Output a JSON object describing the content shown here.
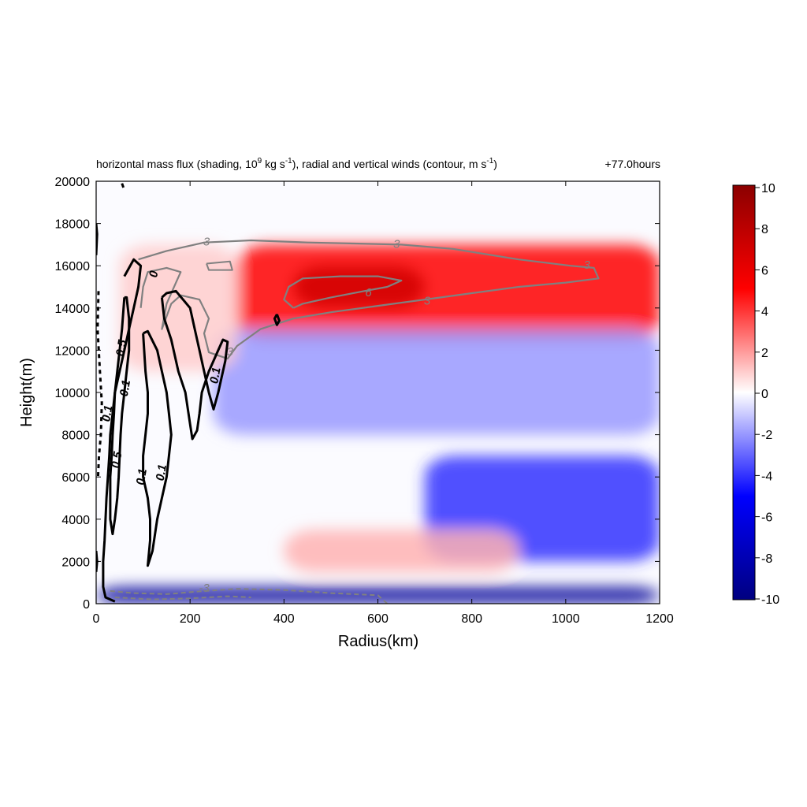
{
  "title": {
    "left_prefix": "horizontal mass flux (shading, 10",
    "left_sup1": "9",
    "left_mid": " kg s",
    "left_sup2": "-1",
    "left_mid2": "), radial and vertical winds (contour, m s",
    "left_sup3": "-1",
    "left_suffix": ")",
    "right": "+77.0hours"
  },
  "colors": {
    "positive_max": "#8b0000",
    "positive_mid": "#ff0000",
    "zero": "#ffffff",
    "negative_mid": "#0000ff",
    "negative_max": "#000080",
    "contour_radial": "#808080",
    "contour_vertical": "#000000"
  },
  "chart_data": {
    "type": "heatmap",
    "xlabel": "Radius(km)",
    "ylabel": "Height(m)",
    "xlim": [
      0,
      1200
    ],
    "ylim": [
      0,
      20000
    ],
    "xticks": [
      "0",
      "200",
      "400",
      "600",
      "800",
      "1000",
      "1200"
    ],
    "yticks": [
      "0",
      "2000",
      "4000",
      "6000",
      "8000",
      "10000",
      "12000",
      "14000",
      "16000",
      "18000",
      "20000"
    ],
    "colorbar": {
      "range": [
        -10,
        10
      ],
      "ticks": [
        "10",
        "8",
        "6",
        "4",
        "2",
        "0",
        "-2",
        "-4",
        "-6",
        "-8",
        "-10"
      ]
    },
    "shading_regions": [
      {
        "name": "upper outflow",
        "value": 5,
        "x": [
          300,
          1200
        ],
        "y": [
          12500,
          17000
        ]
      },
      {
        "name": "upper outflow core",
        "value": 7,
        "x": [
          420,
          700
        ],
        "y": [
          14000,
          16000
        ]
      },
      {
        "name": "mid-level inflow",
        "value": -2,
        "x": [
          250,
          1200
        ],
        "y": [
          8000,
          13000
        ]
      },
      {
        "name": "low-level inflow",
        "value": -4,
        "x": [
          700,
          1200
        ],
        "y": [
          2000,
          7000
        ]
      },
      {
        "name": "boundary layer inflow",
        "value": -9,
        "x": [
          0,
          1200
        ],
        "y": [
          0,
          800
        ]
      },
      {
        "name": "low-level outflow",
        "value": 1.5,
        "x": [
          400,
          900
        ],
        "y": [
          1500,
          3500
        ]
      },
      {
        "name": "eyewall outflow",
        "value": 1,
        "x": [
          50,
          300
        ],
        "y": [
          11000,
          17000
        ]
      }
    ],
    "contour_labels": [
      {
        "text": "3",
        "x": 235,
        "y": 17100,
        "color": "gray"
      },
      {
        "text": "3",
        "x": 640,
        "y": 17000,
        "color": "gray"
      },
      {
        "text": "3",
        "x": 1045,
        "y": 16000,
        "color": "gray"
      },
      {
        "text": "6",
        "x": 580,
        "y": 14700,
        "color": "gray"
      },
      {
        "text": "3",
        "x": 705,
        "y": 14300,
        "color": "gray"
      },
      {
        "text": "3",
        "x": 285,
        "y": 11900,
        "color": "gray"
      },
      {
        "text": "-3",
        "x": 230,
        "y": 700,
        "color": "gray"
      },
      {
        "text": "0",
        "x": 124,
        "y": 15600,
        "color": "black"
      },
      {
        "text": "0.5",
        "x": 55,
        "y": 12100,
        "color": "black"
      },
      {
        "text": "0.1",
        "x": 63,
        "y": 10200,
        "color": "black"
      },
      {
        "text": "0.1",
        "x": 25,
        "y": 9000,
        "color": "black"
      },
      {
        "text": "0.5",
        "x": 45,
        "y": 6800,
        "color": "black"
      },
      {
        "text": "0.1",
        "x": 98,
        "y": 6000,
        "color": "black"
      },
      {
        "text": "0.1",
        "x": 140,
        "y": 6200,
        "color": "black"
      },
      {
        "text": "0.1",
        "x": 255,
        "y": 10800,
        "color": "black"
      }
    ]
  }
}
